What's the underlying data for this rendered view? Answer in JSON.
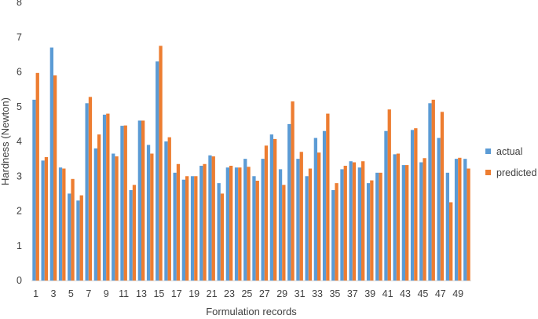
{
  "chart_data": {
    "type": "bar",
    "title": "",
    "xlabel": "Formulation records",
    "ylabel": "Hardness (Newton)",
    "ylim": [
      0,
      8
    ],
    "yticks": [
      0,
      1,
      2,
      3,
      4,
      5,
      6,
      7,
      8
    ],
    "grid": false,
    "legend_position": "right",
    "categories": [
      "1",
      "2",
      "3",
      "4",
      "5",
      "6",
      "7",
      "8",
      "9",
      "10",
      "11",
      "12",
      "13",
      "14",
      "15",
      "16",
      "17",
      "18",
      "19",
      "20",
      "21",
      "22",
      "23",
      "24",
      "25",
      "26",
      "27",
      "28",
      "29",
      "30",
      "31",
      "32",
      "33",
      "34",
      "35",
      "36",
      "37",
      "38",
      "39",
      "40",
      "41",
      "42",
      "43",
      "44",
      "45",
      "46",
      "47",
      "48",
      "49",
      "50"
    ],
    "xtick_labels": [
      "1",
      "3",
      "5",
      "7",
      "9",
      "11",
      "13",
      "15",
      "17",
      "19",
      "21",
      "23",
      "25",
      "27",
      "29",
      "31",
      "33",
      "35",
      "37",
      "39",
      "41",
      "43",
      "45",
      "47",
      "49"
    ],
    "series": [
      {
        "name": "actual",
        "color": "#5b9bd5",
        "values": [
          5.2,
          3.45,
          6.7,
          3.25,
          2.5,
          2.3,
          5.1,
          3.8,
          4.77,
          3.65,
          4.45,
          2.6,
          4.6,
          3.9,
          6.3,
          4.0,
          3.1,
          2.9,
          3.0,
          3.3,
          3.6,
          2.8,
          3.25,
          3.25,
          3.5,
          3.0,
          3.5,
          4.2,
          3.2,
          4.5,
          3.5,
          3.0,
          4.1,
          4.3,
          2.6,
          3.2,
          3.43,
          3.25,
          2.8,
          3.1,
          4.3,
          3.63,
          3.32,
          4.33,
          3.4,
          5.1,
          4.1,
          3.1,
          3.5,
          3.5
        ]
      },
      {
        "name": "predicted",
        "color": "#ed7d31",
        "values": [
          5.97,
          3.55,
          5.9,
          3.22,
          2.92,
          2.45,
          5.28,
          4.2,
          4.8,
          3.57,
          4.46,
          2.75,
          4.6,
          3.65,
          6.75,
          4.12,
          3.35,
          3.0,
          3.0,
          3.35,
          3.57,
          2.5,
          3.3,
          3.25,
          3.27,
          2.87,
          3.88,
          4.07,
          2.75,
          5.15,
          3.7,
          3.22,
          3.68,
          4.8,
          2.8,
          3.3,
          3.4,
          3.43,
          2.88,
          3.1,
          4.92,
          3.65,
          3.32,
          4.38,
          3.52,
          5.2,
          4.85,
          2.25,
          3.53,
          3.22
        ]
      }
    ]
  }
}
